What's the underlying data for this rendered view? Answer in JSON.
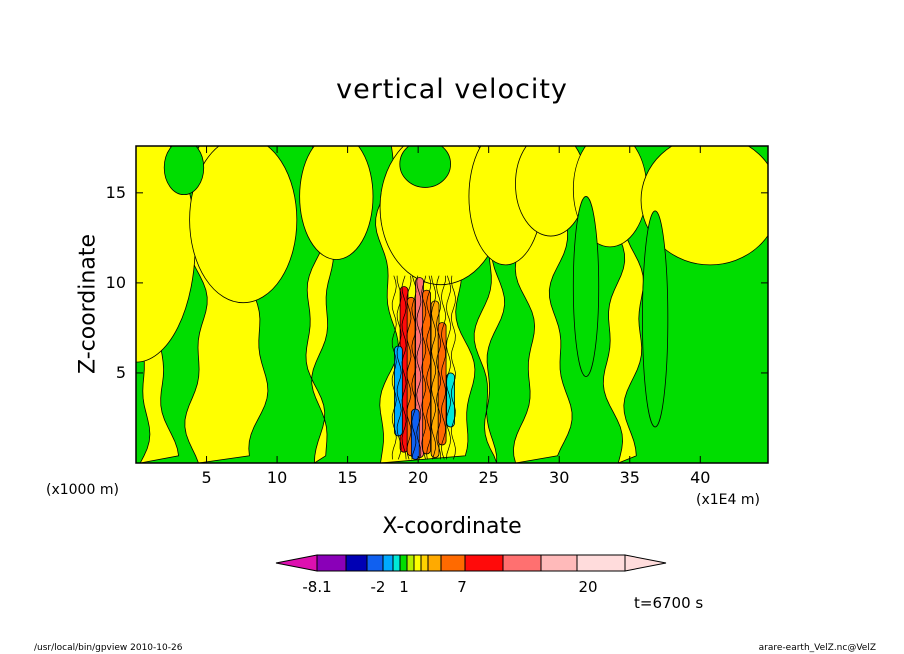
{
  "title": "vertical velocity",
  "colors": {
    "positive_weak": "#ffff00",
    "negative_weak": "#00dd00",
    "contour_line": "#000000",
    "frame": "#000000"
  },
  "chart_data": {
    "type": "contour",
    "title": "vertical velocity",
    "xlabel": "X-coordinate",
    "ylabel": "Z-coordinate",
    "x_unit_left": "(x1000 m)",
    "x_unit_right": "(x1E4 m)",
    "xlim": [
      0,
      44.8
    ],
    "ylim": [
      0,
      17.6
    ],
    "xticks": [
      5,
      10,
      15,
      20,
      25,
      30,
      35,
      40
    ],
    "yticks": [
      5,
      10,
      15
    ],
    "band_boundaries_x": [
      0.3,
      2.2,
      4.3,
      8.6,
      12.6,
      13.3,
      17.8,
      23.3,
      24.8,
      25.3,
      27.6,
      30.1,
      33.8,
      35.4,
      38.9
    ],
    "convective_core": {
      "x_range": [
        18.3,
        22.7
      ],
      "z_range": [
        0.2,
        10.6
      ]
    },
    "colorbar": {
      "levels_shown": [
        "-8.1",
        "-2",
        "1",
        "7",
        "20"
      ],
      "colors": [
        "#dd10b0",
        "#8a00b8",
        "#0000b4",
        "#1060f0",
        "#00aaff",
        "#00e8d8",
        "#00dd00",
        "#b4f000",
        "#ffff00",
        "#ffd200",
        "#ffaa00",
        "#ff6a00",
        "#ff0a0a",
        "#ff7070",
        "#ffbaba",
        "#ffdcdc"
      ]
    },
    "time": "t=6700 s"
  },
  "footer": {
    "left": "/usr/local/bin/gpview   2010-10-26",
    "right": "arare-earth_VelZ.nc@VelZ"
  }
}
